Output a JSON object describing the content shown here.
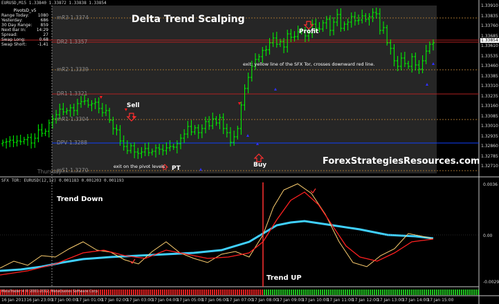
{
  "window": {
    "symbol_header": "EURUSD,M15  1.33840  1.33872  1.33838  1.33854",
    "indicator_header": "SFX TOR: EURUSD(12,12) 0.001183 0.001203 0.001193",
    "footer_left": "MetaTrader 4 © 2001-2012, MetaQuotes Software Corp.",
    "title": "Delta Trend Scalping",
    "watermark": "ForexStrategiesResources.com"
  },
  "pivot_panel": {
    "title": "PivotsD_v5",
    "rows": [
      {
        "label": "Range Today:",
        "value": "1080"
      },
      {
        "label": "Yesterday:",
        "value": "686"
      },
      {
        "label": "30 Day Range:",
        "value": "859"
      },
      {
        "label": "Next Bar In:",
        "value": "14:29"
      },
      {
        "label": "Spread:",
        "value": "27"
      },
      {
        "label": "Swap Long:",
        "value": "0.68"
      },
      {
        "label": "Swap Short:",
        "value": "-1.41"
      }
    ]
  },
  "levels": [
    {
      "name": "mR3",
      "price": "1.3374",
      "color": "#8a8a8a",
      "line": "#a07030"
    },
    {
      "name": "DR2",
      "price": "1.3357",
      "color": "#8a8a8a",
      "line": "#b02020"
    },
    {
      "name": "mR2",
      "price": "1.3339",
      "color": "#8a8a8a",
      "line": "#a07030"
    },
    {
      "name": "DR1",
      "price": "1.3321",
      "color": "#8a8a8a",
      "line": "#b02020"
    },
    {
      "name": "mR1",
      "price": "1.3304",
      "color": "#8a8a8a",
      "line": "#a07030"
    },
    {
      "name": "DPV",
      "price": "1.3288",
      "color": "#8a8a8a",
      "line": "#1040ff"
    },
    {
      "name": "mS1",
      "price": "1.3270",
      "color": "#8a8a8a",
      "line": "#a07030"
    }
  ],
  "thursday_label": "Thursday",
  "annotations": {
    "sell": "Sell",
    "buy": "Buy",
    "profit": "Profit",
    "pt": "PT",
    "exit_pivot": "exit on the pivot levels",
    "exit_yellow": "exit: yellow line of the SFX Tor, crosses downward red line.",
    "trend_down": "Trend Down",
    "trend_up": "Trend UP"
  },
  "price_axis": {
    "current": "1.33854",
    "ticks": [
      "1.33910",
      "1.33835",
      "1.33760",
      "1.33685",
      "1.33610",
      "1.33535",
      "1.33460",
      "1.33385",
      "1.33310",
      "1.33235",
      "1.33160",
      "1.33085",
      "1.33010",
      "1.32935",
      "1.32860",
      "1.32785",
      "1.32710"
    ]
  },
  "indicator_axis": {
    "ticks": [
      "0.0036",
      "0.00",
      "-0.0029"
    ]
  },
  "time_axis": [
    "16 Jan 2013",
    "16 Jan 23:00",
    "17 Jan 00:00",
    "17 Jan 01:00",
    "17 Jan 02:00",
    "17 Jan 03:00",
    "17 Jan 04:00",
    "17 Jan 05:00",
    "17 Jan 06:00",
    "17 Jan 07:00",
    "17 Jan 08:00",
    "17 Jan 09:00",
    "17 Jan 10:00",
    "17 Jan 11:00",
    "17 Jan 12:00",
    "17 Jan 13:00",
    "17 Jan 14:00",
    "17 Jan 15:00"
  ],
  "colors": {
    "candles": "#00ff00",
    "arrow_sell": "#ff2020",
    "arrow_buy": "#3030ff",
    "tor_cyan": "#40d0ff",
    "tor_yellow": "#ffd070",
    "tor_red": "#ff2020",
    "divider": "#ff3030"
  }
}
